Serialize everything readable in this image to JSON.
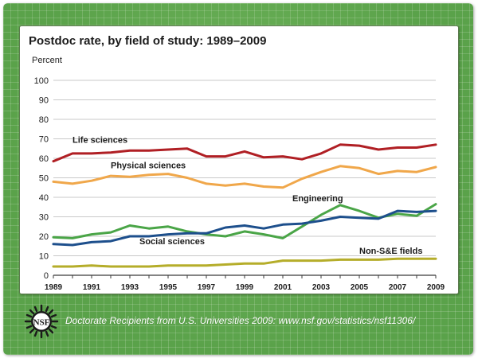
{
  "chart_data": {
    "type": "line",
    "title": "Postdoc rate, by field of study: 1989–2009",
    "ylabel": "Percent",
    "ylim": [
      0,
      100
    ],
    "xlim": [
      1989,
      2009
    ],
    "yticks": [
      0,
      10,
      20,
      30,
      40,
      50,
      60,
      70,
      80,
      90,
      100
    ],
    "xticks": [
      1989,
      1991,
      1993,
      1995,
      1997,
      1999,
      2001,
      2003,
      2005,
      2007,
      2009
    ],
    "x": [
      1989,
      1990,
      1991,
      1992,
      1993,
      1994,
      1995,
      1996,
      1997,
      1998,
      1999,
      2000,
      2001,
      2002,
      2003,
      2004,
      2005,
      2006,
      2007,
      2008,
      2009
    ],
    "grid": "horizontal",
    "series": [
      {
        "name": "Life sciences",
        "color": "#b01f24",
        "values": [
          58.5,
          62.5,
          62.5,
          63.0,
          64.0,
          64.0,
          64.5,
          65.0,
          61.0,
          61.0,
          63.5,
          60.5,
          61.0,
          59.5,
          62.5,
          67.0,
          66.5,
          64.5,
          65.5,
          65.5,
          67.0
        ]
      },
      {
        "name": "Physical sciences",
        "color": "#f0a74a",
        "values": [
          48.0,
          47.0,
          48.5,
          51.0,
          50.5,
          51.5,
          52.0,
          50.0,
          47.0,
          46.0,
          47.0,
          45.5,
          45.0,
          49.5,
          53.0,
          56.0,
          55.0,
          52.0,
          53.5,
          53.0,
          55.5
        ]
      },
      {
        "name": "Engineering",
        "color": "#4aa547",
        "values": [
          19.5,
          19.0,
          21.0,
          22.0,
          25.5,
          24.0,
          25.0,
          22.5,
          21.0,
          20.0,
          22.5,
          21.0,
          19.0,
          25.0,
          31.0,
          36.0,
          33.0,
          29.5,
          31.5,
          30.5,
          36.5
        ]
      },
      {
        "name": "Social sciences",
        "color": "#1d4f8c",
        "values": [
          16.0,
          15.5,
          17.0,
          17.5,
          20.0,
          20.0,
          21.0,
          21.5,
          21.5,
          24.5,
          25.5,
          24.0,
          26.0,
          26.5,
          28.0,
          30.0,
          29.5,
          29.0,
          33.0,
          32.5,
          33.0
        ]
      },
      {
        "name": "Non-S&E fields",
        "color": "#b5ad2a",
        "values": [
          4.5,
          4.5,
          5.0,
          4.5,
          4.5,
          4.5,
          5.0,
          5.0,
          5.0,
          5.5,
          6.0,
          6.0,
          7.5,
          7.5,
          7.5,
          8.0,
          8.0,
          8.0,
          8.5,
          8.5,
          8.5
        ]
      }
    ]
  },
  "footer": {
    "logo_text": "NSF",
    "source": "Doctorate Recipients from U.S. Universities 2009: www.nsf.gov/statistics/nsf11306/"
  }
}
